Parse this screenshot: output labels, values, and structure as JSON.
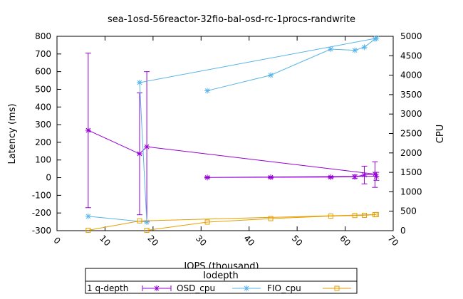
{
  "chart_data": {
    "type": "line",
    "title": "sea-1osd-56reactor-32fio-bal-osd-rc-1procs-randwrite",
    "xlabel": "IOPS (thousand)",
    "ylabel": "Latency (ms)",
    "y2label": "CPU",
    "xlim": [
      0,
      70
    ],
    "ylim": [
      -300,
      800
    ],
    "y2lim": [
      0,
      5000
    ],
    "xticks": [
      0,
      10,
      20,
      30,
      40,
      50,
      60,
      70
    ],
    "yticks": [
      -300,
      -200,
      -100,
      0,
      100,
      200,
      300,
      400,
      500,
      600,
      700,
      800
    ],
    "y2ticks": [
      0,
      500,
      1000,
      1500,
      2000,
      2500,
      3000,
      3500,
      4000,
      4500,
      5000
    ],
    "legend": {
      "title": "Iodepth",
      "position": "bottom-center",
      "entries": [
        "1 q-depth",
        "OSD_cpu",
        "FIO_cpu"
      ]
    },
    "series": [
      {
        "name": "1 q-depth",
        "axis": "y",
        "color": "#9400d3",
        "marker": "star",
        "error_bars": true,
        "points": [
          {
            "x": 6.5,
            "y": 268,
            "low": -170,
            "high": 705
          },
          {
            "x": 17.2,
            "y": 135,
            "low": -210,
            "high": 480
          },
          {
            "x": 18.7,
            "y": 175,
            "low": -250,
            "high": 600
          },
          {
            "x": 66.2,
            "y": 20,
            "low": -55,
            "high": 90
          },
          {
            "x": 64.0,
            "y": 15,
            "low": -35,
            "high": 65
          },
          {
            "x": 62.0,
            "y": 5,
            "low": -5,
            "high": 15
          },
          {
            "x": 57.0,
            "y": 3,
            "low": -2,
            "high": 8
          },
          {
            "x": 44.5,
            "y": 2,
            "low": -2,
            "high": 6
          },
          {
            "x": 31.3,
            "y": 1,
            "low": -2,
            "high": 5
          },
          {
            "x": 66.5,
            "y": 8,
            "low": -15,
            "high": 30
          }
        ]
      },
      {
        "name": "OSD_cpu",
        "axis": "y2",
        "color": "#56b4e9",
        "marker": "star",
        "points": [
          {
            "x": 6.5,
            "y": 370
          },
          {
            "x": 18.7,
            "y": 220
          },
          {
            "x": 17.2,
            "y": 3810
          },
          {
            "x": 66.5,
            "y": 4950
          },
          {
            "x": 66.2,
            "y": 4930
          },
          {
            "x": 64.0,
            "y": 4720
          },
          {
            "x": 62.0,
            "y": 4640
          },
          {
            "x": 57.0,
            "y": 4670
          },
          {
            "x": 44.5,
            "y": 4000
          },
          {
            "x": 31.3,
            "y": 3600
          }
        ]
      },
      {
        "name": "FIO_cpu",
        "axis": "y2",
        "color": "#e69f00",
        "marker": "square",
        "points": [
          {
            "x": 6.5,
            "y": 10
          },
          {
            "x": 17.2,
            "y": 250
          },
          {
            "x": 66.5,
            "y": 415
          },
          {
            "x": 66.2,
            "y": 410
          },
          {
            "x": 64.0,
            "y": 395
          },
          {
            "x": 62.0,
            "y": 390
          },
          {
            "x": 57.0,
            "y": 375
          },
          {
            "x": 44.5,
            "y": 310
          },
          {
            "x": 31.3,
            "y": 220
          },
          {
            "x": 18.7,
            "y": 10
          }
        ]
      }
    ]
  }
}
